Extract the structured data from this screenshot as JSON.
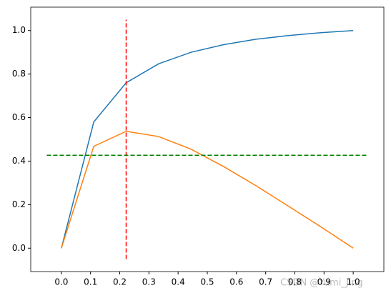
{
  "chart_data": {
    "type": "line",
    "series": [
      {
        "color": "#1f77b4",
        "x": [
          0,
          0.111,
          0.222,
          0.333,
          0.444,
          0.556,
          0.667,
          0.778,
          0.889,
          1.0
        ],
        "values": [
          0,
          0.58,
          0.76,
          0.847,
          0.9,
          0.935,
          0.96,
          0.977,
          0.99,
          1.0
        ]
      },
      {
        "color": "#ff7f0e",
        "x": [
          0,
          0.111,
          0.222,
          0.333,
          0.444,
          0.556,
          0.667,
          0.778,
          0.889,
          1.0
        ],
        "values": [
          0,
          0.468,
          0.537,
          0.513,
          0.455,
          0.375,
          0.287,
          0.193,
          0.098,
          0
        ]
      },
      {
        "color": "#ff0000",
        "dashed": true,
        "x": [
          0.222,
          0.222
        ],
        "values": [
          -0.05,
          1.05
        ]
      },
      {
        "color": "#008000",
        "dashed": true,
        "x": [
          -0.05,
          1.05
        ],
        "values": [
          0.427,
          0.427
        ]
      }
    ],
    "xlim": [
      -0.105,
      1.105
    ],
    "ylim": [
      -0.1075,
      1.1075
    ],
    "xticks": [
      {
        "value": 0,
        "label": "0.0"
      },
      0.1,
      0.2,
      0.3,
      0.4,
      0.5,
      0.6,
      0.7,
      0.8,
      0.9,
      {
        "value": 1,
        "label": "1.0"
      }
    ],
    "yticks": [
      {
        "value": 0,
        "label": "0.0"
      },
      0.2,
      0.4,
      0.6,
      0.8,
      {
        "value": 1,
        "label": "1.0"
      }
    ],
    "watermark": "CSDN @Yumi_Jing"
  }
}
